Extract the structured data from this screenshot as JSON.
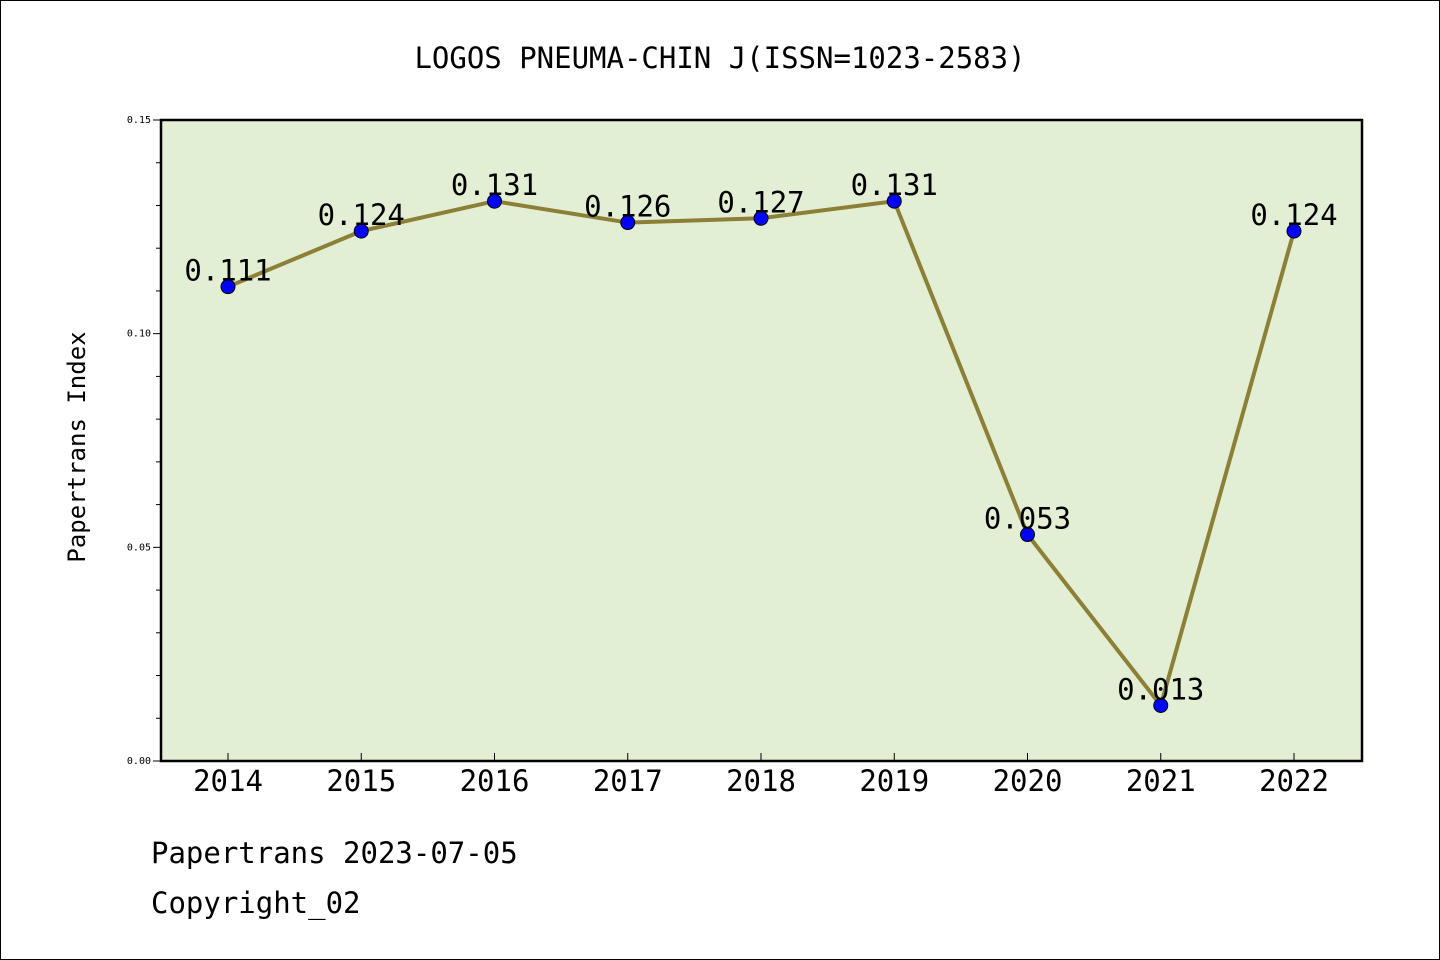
{
  "chart_data": {
    "type": "line",
    "title": "LOGOS PNEUMA-CHIN J(ISSN=1023-2583)",
    "xlabel": "",
    "ylabel": "Papertrans Index",
    "categories": [
      "2014",
      "2015",
      "2016",
      "2017",
      "2018",
      "2019",
      "2020",
      "2021",
      "2022"
    ],
    "series": [
      {
        "values": [
          0.111,
          0.124,
          0.131,
          0.126,
          0.127,
          0.131,
          0.053,
          0.013,
          0.124
        ]
      }
    ],
    "data_labels": [
      "0.111",
      "0.124",
      "0.131",
      "0.126",
      "0.127",
      "0.131",
      "0.053",
      "0.013",
      "0.124"
    ],
    "ylim": [
      0,
      0.15
    ],
    "yticks": [
      "0.00",
      "0.05",
      "0.10",
      "0.15"
    ],
    "grid": false,
    "colors": {
      "plot_background": "#e2efd4",
      "line": "#8c7f36",
      "marker": "#0000ff"
    }
  },
  "footer": {
    "line1": "Papertrans 2023-07-05",
    "line2": "Copyright_02"
  }
}
